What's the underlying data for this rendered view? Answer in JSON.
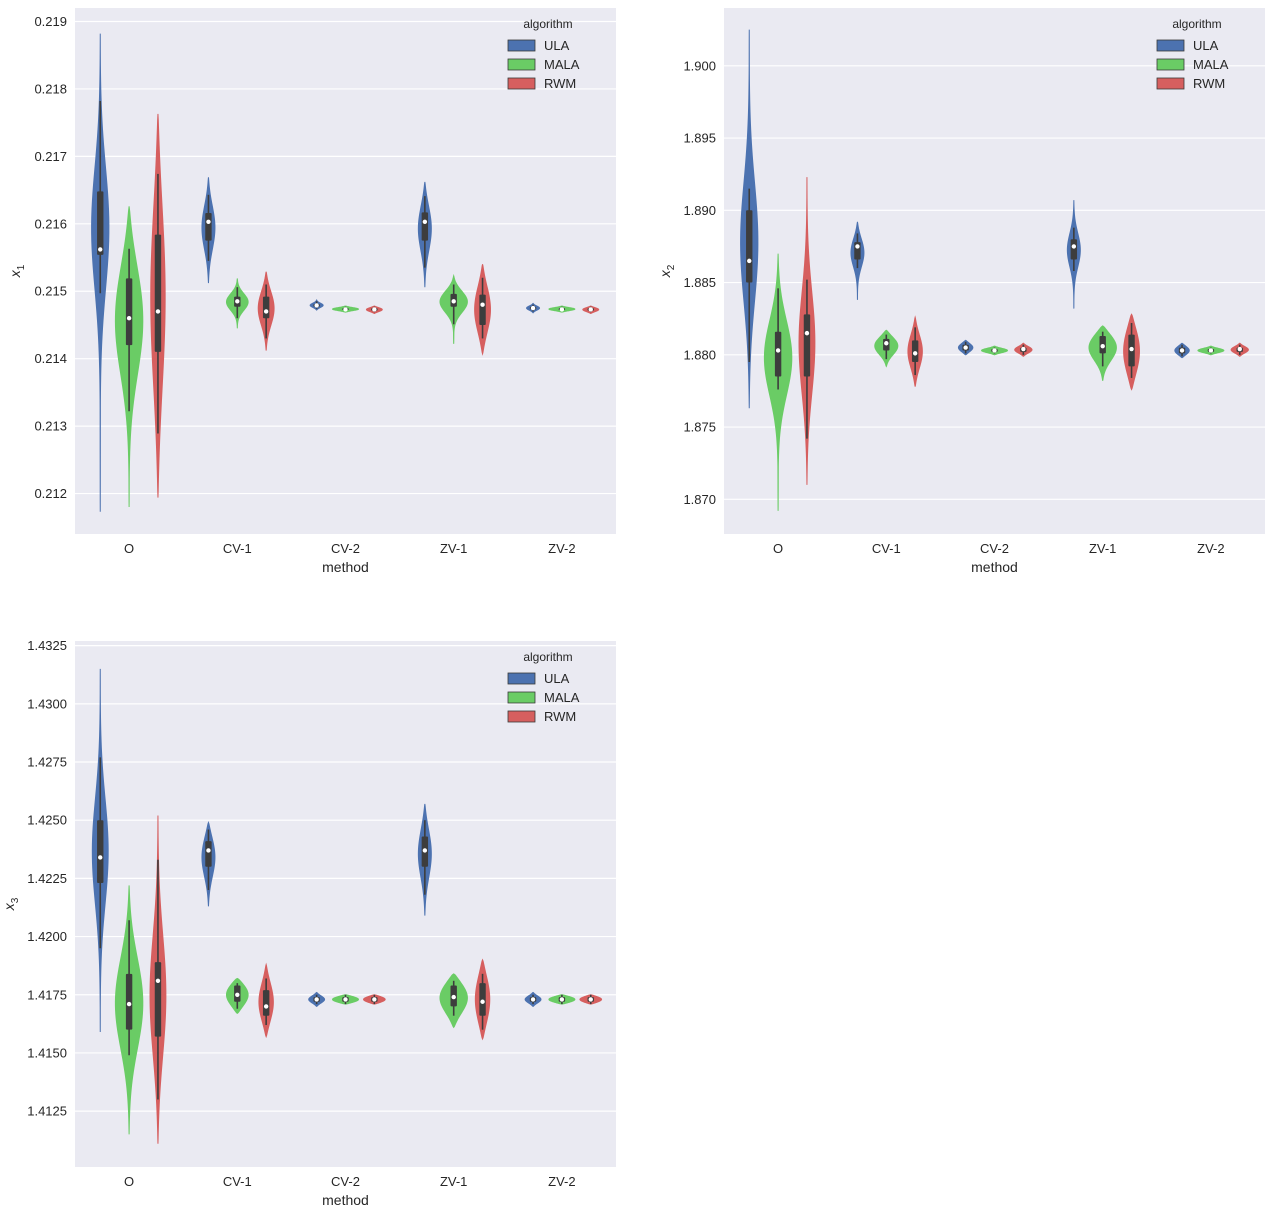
{
  "colors": {
    "background": "#eaeaf2",
    "grid": "#ffffff",
    "ULA": "#4c72b0",
    "MALA": "#6acc65",
    "RWM": "#d65f5f",
    "box": "#3d3d3d",
    "median": "#ffffff"
  },
  "chart_data": [
    {
      "type": "violin",
      "ylabel_base": "x",
      "ylabel_sub": "1",
      "xlabel": "method",
      "legend": {
        "title": "algorithm",
        "entries": [
          "ULA",
          "MALA",
          "RWM"
        ],
        "placement": "top-right"
      },
      "grid": true,
      "ylim": [
        0.2114,
        0.2192
      ],
      "yticks": [
        "0.212",
        "0.213",
        "0.214",
        "0.215",
        "0.216",
        "0.217",
        "0.218",
        "0.219"
      ],
      "categories": [
        "O",
        "CV-1",
        "CV-2",
        "ZV-1",
        "ZV-2"
      ],
      "series": [
        {
          "name": "ULA",
          "data": [
            {
              "min": 0.21173,
              "max": 0.21882,
              "q1": 0.21554,
              "median": 0.21562,
              "q3": 0.21648,
              "wlo": 0.21497,
              "whi": 0.21782,
              "width": 0.6
            },
            {
              "min": 0.21512,
              "max": 0.21669,
              "q1": 0.21575,
              "median": 0.21603,
              "q3": 0.21616,
              "wlo": 0.21545,
              "whi": 0.21643,
              "width": 0.45
            },
            {
              "min": 0.21472,
              "max": 0.21487,
              "q1": 0.21477,
              "median": 0.21479,
              "q3": 0.21481,
              "wlo": 0.21474,
              "whi": 0.21485,
              "width": 0.45
            },
            {
              "min": 0.21506,
              "max": 0.21662,
              "q1": 0.21575,
              "median": 0.21603,
              "q3": 0.21617,
              "wlo": 0.21535,
              "whi": 0.21641,
              "width": 0.45
            },
            {
              "min": 0.21468,
              "max": 0.21482,
              "q1": 0.21473,
              "median": 0.21475,
              "q3": 0.21477,
              "wlo": 0.2147,
              "whi": 0.2148,
              "width": 0.45
            }
          ]
        },
        {
          "name": "MALA",
          "data": [
            {
              "min": 0.2118,
              "max": 0.21626,
              "q1": 0.2142,
              "median": 0.2146,
              "q3": 0.21519,
              "wlo": 0.21322,
              "whi": 0.21563,
              "width": 0.95
            },
            {
              "min": 0.21445,
              "max": 0.21519,
              "q1": 0.21477,
              "median": 0.21485,
              "q3": 0.21492,
              "wlo": 0.2146,
              "whi": 0.21506,
              "width": 0.75
            },
            {
              "min": 0.21469,
              "max": 0.21478,
              "q1": 0.21472,
              "median": 0.21473,
              "q3": 0.21475,
              "wlo": 0.2147,
              "whi": 0.21477,
              "width": 0.9
            },
            {
              "min": 0.21422,
              "max": 0.21523,
              "q1": 0.21477,
              "median": 0.21485,
              "q3": 0.21496,
              "wlo": 0.21451,
              "whi": 0.2151,
              "width": 0.95
            },
            {
              "min": 0.21469,
              "max": 0.21478,
              "q1": 0.21472,
              "median": 0.21473,
              "q3": 0.21475,
              "wlo": 0.2147,
              "whi": 0.21477,
              "width": 0.9
            }
          ]
        },
        {
          "name": "RWM",
          "data": [
            {
              "min": 0.21194,
              "max": 0.21763,
              "q1": 0.2141,
              "median": 0.2147,
              "q3": 0.21584,
              "wlo": 0.21289,
              "whi": 0.21674,
              "width": 0.5
            },
            {
              "min": 0.21412,
              "max": 0.21529,
              "q1": 0.2146,
              "median": 0.2147,
              "q3": 0.21492,
              "wlo": 0.2143,
              "whi": 0.2151,
              "width": 0.55
            },
            {
              "min": 0.21467,
              "max": 0.21478,
              "q1": 0.21471,
              "median": 0.21473,
              "q3": 0.21475,
              "wlo": 0.21469,
              "whi": 0.21477,
              "width": 0.55
            },
            {
              "min": 0.21407,
              "max": 0.2154,
              "q1": 0.2145,
              "median": 0.2148,
              "q3": 0.21495,
              "wlo": 0.2143,
              "whi": 0.2152,
              "width": 0.55
            },
            {
              "min": 0.21467,
              "max": 0.21478,
              "q1": 0.21471,
              "median": 0.21473,
              "q3": 0.21475,
              "wlo": 0.21469,
              "whi": 0.21477,
              "width": 0.55
            }
          ]
        }
      ]
    },
    {
      "type": "violin",
      "ylabel_base": "x",
      "ylabel_sub": "2",
      "xlabel": "method",
      "legend": {
        "title": "algorithm",
        "entries": [
          "ULA",
          "MALA",
          "RWM"
        ],
        "placement": "top-right"
      },
      "grid": true,
      "ylim": [
        1.8676,
        1.904
      ],
      "yticks": [
        "1.870",
        "1.875",
        "1.880",
        "1.885",
        "1.890",
        "1.895",
        "1.900"
      ],
      "categories": [
        "O",
        "CV-1",
        "CV-2",
        "ZV-1",
        "ZV-2"
      ],
      "series": [
        {
          "name": "ULA",
          "data": [
            {
              "min": 1.8763,
              "max": 1.9025,
              "q1": 1.885,
              "median": 1.8865,
              "q3": 1.89,
              "wlo": 1.8795,
              "whi": 1.8915,
              "width": 0.6
            },
            {
              "min": 1.8838,
              "max": 1.8892,
              "q1": 1.8866,
              "median": 1.8875,
              "q3": 1.8878,
              "wlo": 1.886,
              "whi": 1.8884,
              "width": 0.45
            },
            {
              "min": 1.88,
              "max": 1.881,
              "q1": 1.8803,
              "median": 1.8805,
              "q3": 1.8807,
              "wlo": 1.8801,
              "whi": 1.8809,
              "width": 0.5
            },
            {
              "min": 1.8832,
              "max": 1.8907,
              "q1": 1.8866,
              "median": 1.8875,
              "q3": 1.888,
              "wlo": 1.8858,
              "whi": 1.8888,
              "width": 0.45
            },
            {
              "min": 1.8798,
              "max": 1.8808,
              "q1": 1.8801,
              "median": 1.8803,
              "q3": 1.8805,
              "wlo": 1.8799,
              "whi": 1.8807,
              "width": 0.5
            }
          ]
        },
        {
          "name": "MALA",
          "data": [
            {
              "min": 1.8692,
              "max": 1.887,
              "q1": 1.8785,
              "median": 1.8803,
              "q3": 1.8816,
              "wlo": 1.8776,
              "whi": 1.8846,
              "width": 0.95
            },
            {
              "min": 1.8792,
              "max": 1.8817,
              "q1": 1.8803,
              "median": 1.8808,
              "q3": 1.8811,
              "wlo": 1.8797,
              "whi": 1.8814,
              "width": 0.8
            },
            {
              "min": 1.88,
              "max": 1.8806,
              "q1": 1.8802,
              "median": 1.8803,
              "q3": 1.8804,
              "wlo": 1.8801,
              "whi": 1.8805,
              "width": 0.9
            },
            {
              "min": 1.8782,
              "max": 1.882,
              "q1": 1.8801,
              "median": 1.8806,
              "q3": 1.8813,
              "wlo": 1.8792,
              "whi": 1.8816,
              "width": 0.95
            },
            {
              "min": 1.88,
              "max": 1.8806,
              "q1": 1.8802,
              "median": 1.8803,
              "q3": 1.8804,
              "wlo": 1.8801,
              "whi": 1.8805,
              "width": 0.9
            }
          ]
        },
        {
          "name": "RWM",
          "data": [
            {
              "min": 1.871,
              "max": 1.8923,
              "q1": 1.8785,
              "median": 1.8815,
              "q3": 1.8828,
              "wlo": 1.8742,
              "whi": 1.8852,
              "width": 0.55
            },
            {
              "min": 1.8778,
              "max": 1.8826,
              "q1": 1.8795,
              "median": 1.8801,
              "q3": 1.881,
              "wlo": 1.8786,
              "whi": 1.8819,
              "width": 0.5
            },
            {
              "min": 1.8799,
              "max": 1.8808,
              "q1": 1.8802,
              "median": 1.8804,
              "q3": 1.8805,
              "wlo": 1.88,
              "whi": 1.8807,
              "width": 0.6
            },
            {
              "min": 1.8776,
              "max": 1.8828,
              "q1": 1.8792,
              "median": 1.8804,
              "q3": 1.8814,
              "wlo": 1.8784,
              "whi": 1.8822,
              "width": 0.55
            },
            {
              "min": 1.8799,
              "max": 1.8808,
              "q1": 1.8802,
              "median": 1.8804,
              "q3": 1.8805,
              "wlo": 1.88,
              "whi": 1.8807,
              "width": 0.6
            }
          ]
        }
      ]
    },
    {
      "type": "violin",
      "ylabel_base": "x",
      "ylabel_sub": "3",
      "xlabel": "method",
      "legend": {
        "title": "algorithm",
        "entries": [
          "ULA",
          "MALA",
          "RWM"
        ],
        "placement": "top-right"
      },
      "grid": true,
      "ylim": [
        1.4101,
        1.4327
      ],
      "yticks": [
        "1.4125",
        "1.4150",
        "1.4175",
        "1.4200",
        "1.4225",
        "1.4250",
        "1.4275",
        "1.4300",
        "1.4325"
      ],
      "categories": [
        "O",
        "CV-1",
        "CV-2",
        "ZV-1",
        "ZV-2"
      ],
      "series": [
        {
          "name": "ULA",
          "data": [
            {
              "min": 1.4159,
              "max": 1.4315,
              "q1": 1.4223,
              "median": 1.4234,
              "q3": 1.425,
              "wlo": 1.4195,
              "whi": 1.4277,
              "width": 0.55
            },
            {
              "min": 1.4213,
              "max": 1.4249,
              "q1": 1.423,
              "median": 1.4237,
              "q3": 1.4241,
              "wlo": 1.422,
              "whi": 1.4246,
              "width": 0.45
            },
            {
              "min": 1.417,
              "max": 1.4176,
              "q1": 1.4172,
              "median": 1.4173,
              "q3": 1.4174,
              "wlo": 1.4171,
              "whi": 1.4175,
              "width": 0.55
            },
            {
              "min": 1.4209,
              "max": 1.4257,
              "q1": 1.423,
              "median": 1.4237,
              "q3": 1.4243,
              "wlo": 1.4218,
              "whi": 1.425,
              "width": 0.45
            },
            {
              "min": 1.417,
              "max": 1.4176,
              "q1": 1.4172,
              "median": 1.4173,
              "q3": 1.4174,
              "wlo": 1.4171,
              "whi": 1.4175,
              "width": 0.55
            }
          ]
        },
        {
          "name": "MALA",
          "data": [
            {
              "min": 1.4115,
              "max": 1.4222,
              "q1": 1.416,
              "median": 1.4171,
              "q3": 1.4184,
              "wlo": 1.4149,
              "whi": 1.4207,
              "width": 0.95
            },
            {
              "min": 1.4167,
              "max": 1.4182,
              "q1": 1.4172,
              "median": 1.4175,
              "q3": 1.4179,
              "wlo": 1.4169,
              "whi": 1.418,
              "width": 0.75
            },
            {
              "min": 1.4171,
              "max": 1.4175,
              "q1": 1.4172,
              "median": 1.4173,
              "q3": 1.4174,
              "wlo": 1.4171,
              "whi": 1.4175,
              "width": 0.9
            },
            {
              "min": 1.4161,
              "max": 1.4184,
              "q1": 1.417,
              "median": 1.4174,
              "q3": 1.4179,
              "wlo": 1.4166,
              "whi": 1.4181,
              "width": 0.95
            },
            {
              "min": 1.4171,
              "max": 1.4175,
              "q1": 1.4172,
              "median": 1.4173,
              "q3": 1.4174,
              "wlo": 1.4171,
              "whi": 1.4175,
              "width": 0.9
            }
          ]
        },
        {
          "name": "RWM",
          "data": [
            {
              "min": 1.4111,
              "max": 1.4252,
              "q1": 1.4157,
              "median": 1.4181,
              "q3": 1.4189,
              "wlo": 1.413,
              "whi": 1.4233,
              "width": 0.55
            },
            {
              "min": 1.4157,
              "max": 1.4188,
              "q1": 1.4166,
              "median": 1.417,
              "q3": 1.4177,
              "wlo": 1.4162,
              "whi": 1.4182,
              "width": 0.5
            },
            {
              "min": 1.4171,
              "max": 1.4175,
              "q1": 1.4172,
              "median": 1.4173,
              "q3": 1.4174,
              "wlo": 1.4171,
              "whi": 1.4175,
              "width": 0.75
            },
            {
              "min": 1.4156,
              "max": 1.419,
              "q1": 1.4166,
              "median": 1.4172,
              "q3": 1.418,
              "wlo": 1.416,
              "whi": 1.4184,
              "width": 0.5
            },
            {
              "min": 1.4171,
              "max": 1.4175,
              "q1": 1.4172,
              "median": 1.4173,
              "q3": 1.4174,
              "wlo": 1.4171,
              "whi": 1.4175,
              "width": 0.75
            }
          ]
        }
      ]
    }
  ]
}
